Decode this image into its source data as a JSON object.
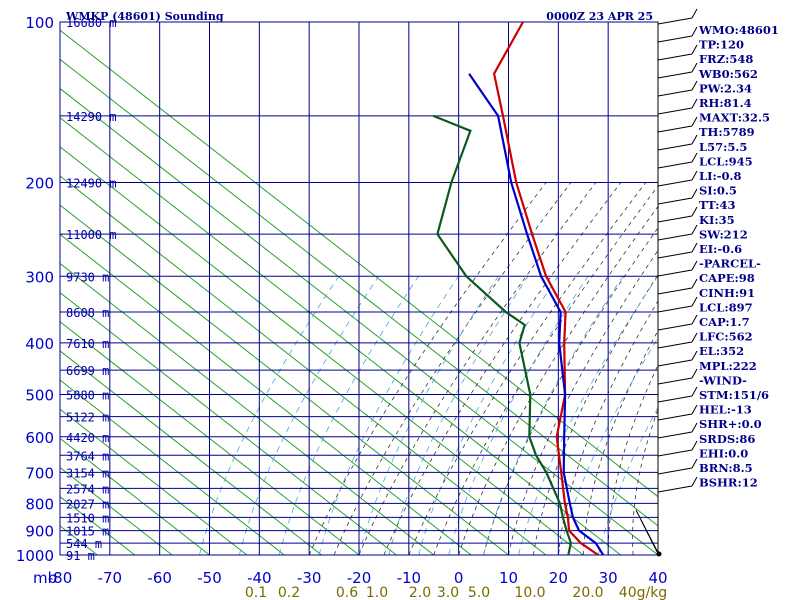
{
  "chart_data": {
    "type": "line",
    "title": "WMKP (48601) Sounding",
    "time_label": "0000Z 23 APR 25",
    "pressure_axis_unit": "mb",
    "pressure_ticks": [
      100,
      200,
      300,
      400,
      500,
      600,
      700,
      800,
      900,
      1000
    ],
    "temperature_ticks": [
      "-80",
      "-70",
      "-60",
      "-50",
      "-40",
      "-30",
      "-20",
      "-10",
      "0",
      "10",
      "20",
      "30",
      "40"
    ],
    "xlim": [
      -80,
      40
    ],
    "ylim": [
      1000,
      100
    ],
    "y_scale": "log",
    "height_labels": [
      {
        "p": 100,
        "text": "16680 m"
      },
      {
        "p": 150,
        "text": "14290 m"
      },
      {
        "p": 200,
        "text": "12490 m"
      },
      {
        "p": 250,
        "text": "11000 m"
      },
      {
        "p": 300,
        "text": "9730 m"
      },
      {
        "p": 350,
        "text": "8608 m"
      },
      {
        "p": 400,
        "text": "7610 m"
      },
      {
        "p": 450,
        "text": "6699 m"
      },
      {
        "p": 500,
        "text": "5880 m"
      },
      {
        "p": 550,
        "text": "5122 m"
      },
      {
        "p": 600,
        "text": "4420 m"
      },
      {
        "p": 650,
        "text": "3764 m"
      },
      {
        "p": 700,
        "text": "3154 m"
      },
      {
        "p": 750,
        "text": "2574 m"
      },
      {
        "p": 800,
        "text": "2027 m"
      },
      {
        "p": 850,
        "text": "1510 m"
      },
      {
        "p": 900,
        "text": "1015 m"
      },
      {
        "p": 950,
        "text": "544 m"
      },
      {
        "p": 1000,
        "text": "91 m"
      }
    ],
    "mixing_ratio_labels": [
      "0.1",
      "0.2",
      "0.6",
      "1.0",
      "2.0",
      "3.0",
      "5.0",
      "10.0",
      "20.0",
      "40g/kg"
    ],
    "series": [
      {
        "name": "",
        "color": "#cc0000",
        "p": [
          1000,
          950,
          900,
          850,
          800,
          700,
          600,
          500,
          400,
          350,
          300,
          250,
          200,
          150,
          125,
          100
        ],
        "t": [
          28,
          22.5,
          18,
          15.5,
          12.5,
          6.5,
          -0.5,
          -6,
          -15,
          -20,
          -30,
          -40,
          -52,
          -66,
          -75,
          -78
        ]
      },
      {
        "name": "",
        "color": "#0000cc",
        "p": [
          1000,
          950,
          900,
          850,
          800,
          700,
          600,
          500,
          400,
          350,
          300,
          250,
          200,
          150,
          125
        ],
        "t": [
          29,
          25.5,
          20,
          16.5,
          13.5,
          7,
          1,
          -6,
          -16,
          -21,
          -31,
          -41,
          -53,
          -67,
          -80
        ]
      },
      {
        "name": "",
        "color": "#0b5a1a",
        "p": [
          1000,
          950,
          900,
          850,
          800,
          700,
          650,
          600,
          500,
          400,
          370,
          350,
          300,
          250,
          200,
          160,
          150
        ],
        "t": [
          22,
          20.5,
          17.5,
          14.5,
          11.5,
          3.5,
          -1.5,
          -6,
          -13,
          -24,
          -26,
          -32,
          -46,
          -59,
          -65,
          -70,
          -80
        ]
      }
    ]
  },
  "indices": [
    "WMO:48601",
    "TP:120",
    "FRZ:548",
    "WB0:562",
    "PW:2.34",
    "RH:81.4",
    "MAXT:32.5",
    "TH:5789",
    "L57:5.5",
    "LCL:945",
    "LI:-0.8",
    "SI:0.5",
    "TT:43",
    "KI:35",
    "SW:212",
    "EI:-0.6",
    "-PARCEL-",
    "CAPE:98",
    "CINH:91",
    "LCL:897",
    "CAP:1.7",
    "LFC:562",
    "EL:352",
    "MPL:222",
    "-WIND-",
    "STM:151/6",
    "HEL:-13",
    "SHR+:0.0",
    "SRDS:86",
    "EHI:0.0",
    "BRN:8.5",
    "BSHR:12"
  ],
  "colors": {
    "grid": "#00008b",
    "dry_adiabat": "#2ca02c",
    "moist_adiabat": "#333333",
    "mixing_ratio": "#4aa3df",
    "temperature": "#cc0000",
    "parcel": "#0000cc",
    "dewpoint": "#0b5a1a"
  }
}
